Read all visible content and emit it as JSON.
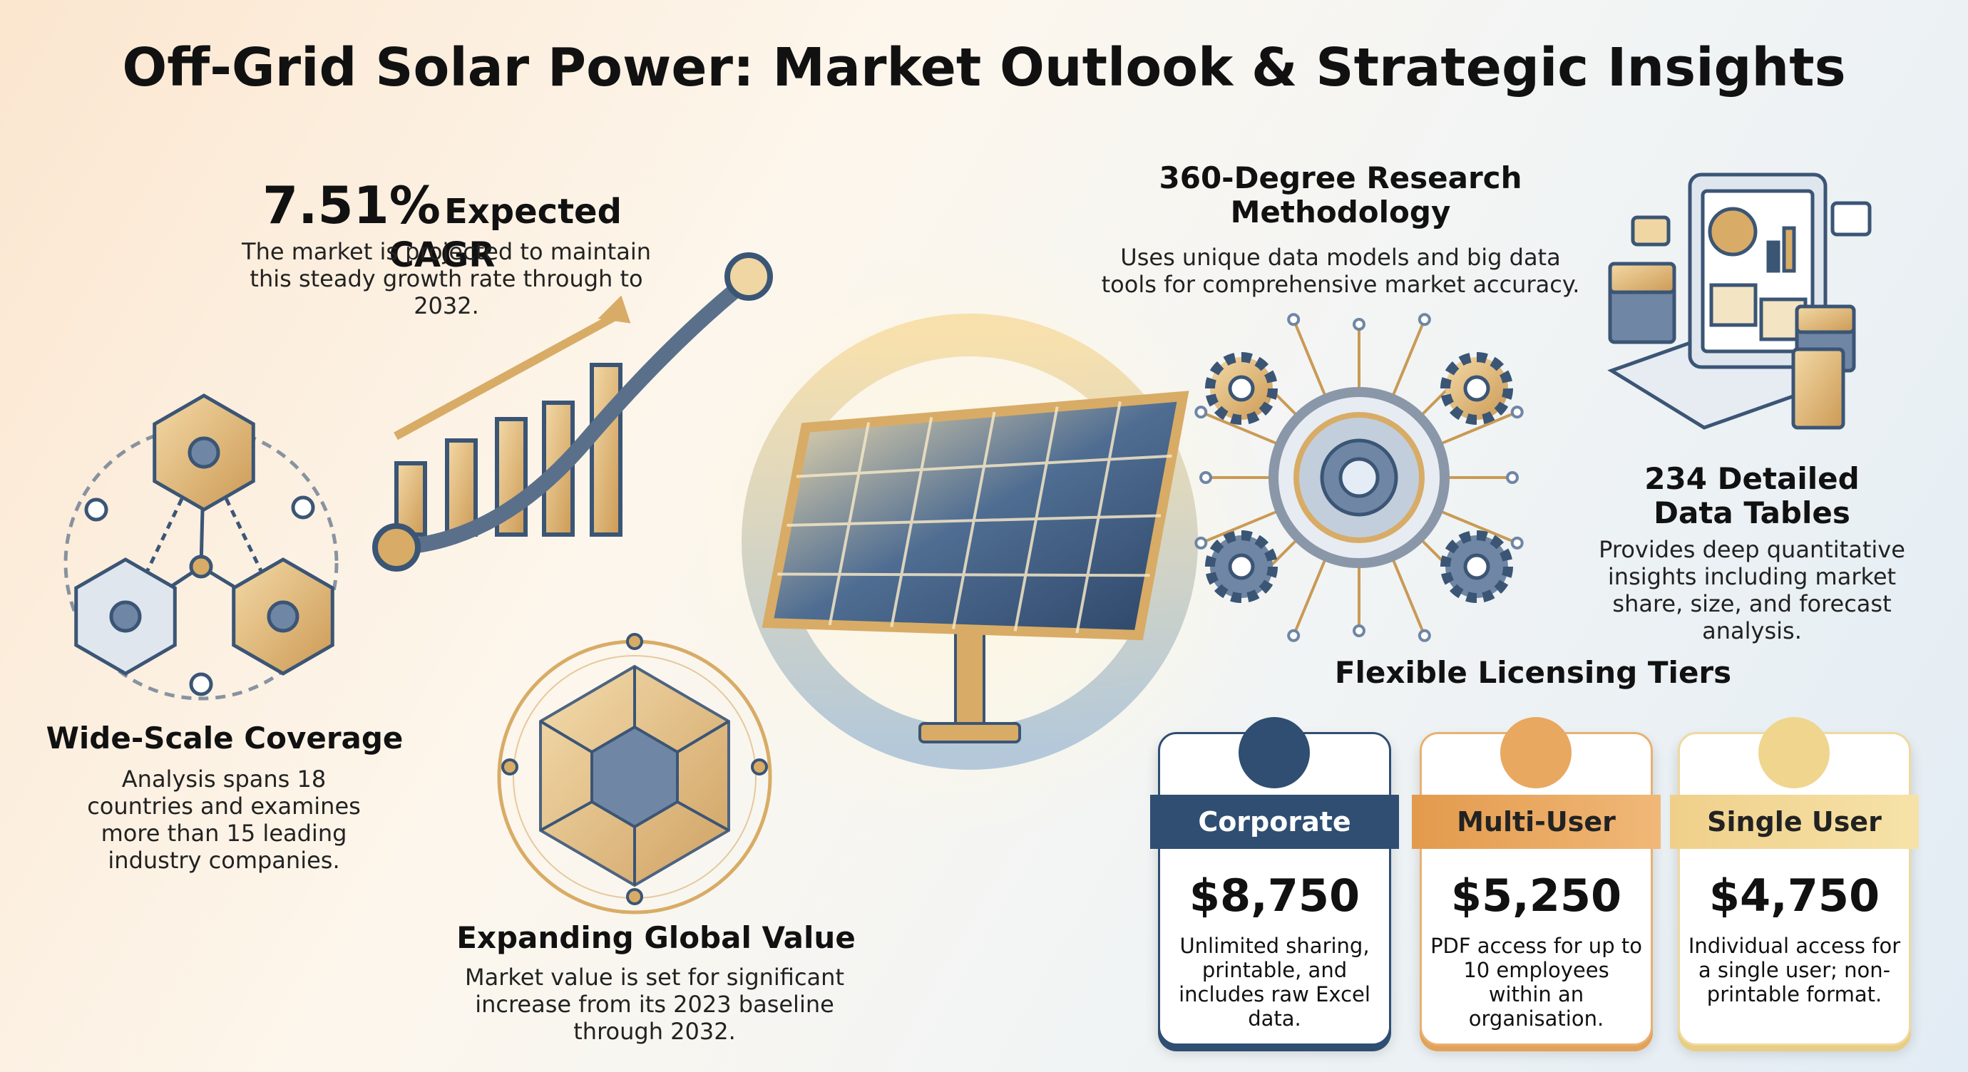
{
  "title": "Off-Grid Solar Power: Market Outlook & Strategic Insights",
  "cagr": {
    "value": "7.51%",
    "label": "Expected CAGR",
    "text": "The market is projected to maintain this steady growth rate through to 2032."
  },
  "coverage": {
    "title": "Wide-Scale Coverage",
    "text": "Analysis spans 18 countries and examines more than 15 leading industry companies."
  },
  "global_value": {
    "title": "Expanding Global Value",
    "text": "Market value is set for significant increase from its 2023 baseline through 2032."
  },
  "methodology": {
    "title": "360-Degree Research Methodology",
    "text": "Uses unique data models and big data tools for comprehensive market accuracy."
  },
  "data_tables": {
    "title": "234 Detailed Data Tables",
    "text": "Provides deep quantitative insights including market share, size, and forecast analysis."
  },
  "licensing": {
    "title": "Flexible Licensing Tiers",
    "tiers": [
      {
        "name": "Corporate",
        "price": "$8,750",
        "description": "Unlimited sharing, printable, and includes raw Excel data."
      },
      {
        "name": "Multi-User",
        "price": "$5,250",
        "description": "PDF access for up to 10 employees within an organisation."
      },
      {
        "name": "Single User",
        "price": "$4,750",
        "description": "Individual access for a single user; non-printable format."
      }
    ]
  }
}
